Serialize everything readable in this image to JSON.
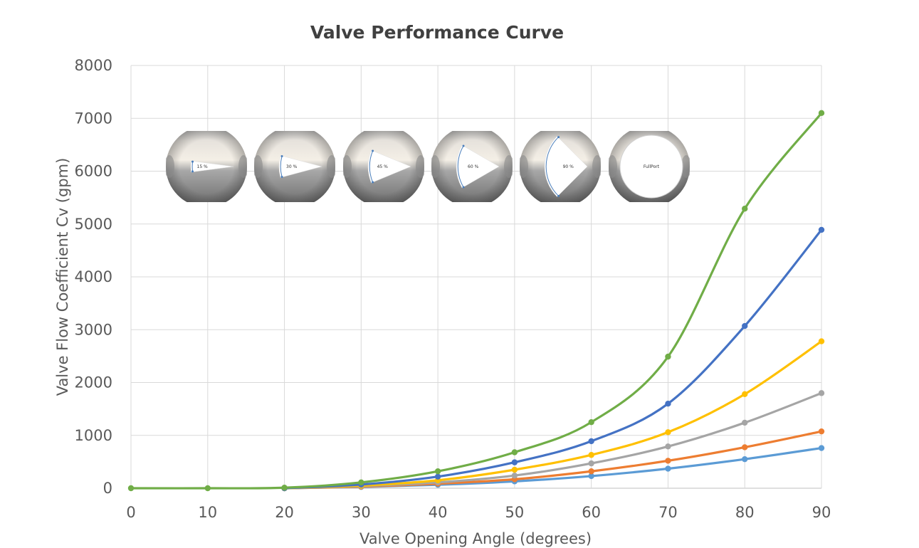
{
  "chart_data": {
    "type": "line",
    "title": "Valve Performance Curve",
    "xlabel": "Valve Opening Angle (degrees)",
    "ylabel": "Valve Flow Coefficient  Cv (gpm)",
    "xlim": [
      0,
      90
    ],
    "ylim": [
      0,
      8000
    ],
    "x_ticks": [
      "0",
      "10",
      "20",
      "30",
      "40",
      "50",
      "60",
      "70",
      "80",
      "90"
    ],
    "y_ticks": [
      "0",
      "1000",
      "2000",
      "3000",
      "4000",
      "5000",
      "6000",
      "7000",
      "8000"
    ],
    "grid": true,
    "smooth": true,
    "series": [
      {
        "color": "#5B9BD5",
        "points": [
          [
            20,
            0
          ],
          [
            30,
            25
          ],
          [
            40,
            65
          ],
          [
            50,
            130
          ],
          [
            60,
            230
          ],
          [
            70,
            370
          ],
          [
            80,
            550
          ],
          [
            90,
            760
          ]
        ]
      },
      {
        "color": "#ED7D31",
        "points": [
          [
            20,
            0
          ],
          [
            30,
            30
          ],
          [
            40,
            85
          ],
          [
            50,
            170
          ],
          [
            60,
            320
          ],
          [
            70,
            520
          ],
          [
            80,
            775
          ],
          [
            90,
            1075
          ]
        ]
      },
      {
        "color": "#A5A5A5",
        "points": [
          [
            20,
            0
          ],
          [
            30,
            40
          ],
          [
            40,
            110
          ],
          [
            50,
            240
          ],
          [
            60,
            470
          ],
          [
            70,
            790
          ],
          [
            80,
            1240
          ],
          [
            90,
            1800
          ]
        ]
      },
      {
        "color": "#FFC000",
        "points": [
          [
            20,
            0
          ],
          [
            30,
            50
          ],
          [
            40,
            150
          ],
          [
            50,
            350
          ],
          [
            60,
            630
          ],
          [
            70,
            1060
          ],
          [
            80,
            1780
          ],
          [
            90,
            2780
          ]
        ]
      },
      {
        "color": "#4472C4",
        "points": [
          [
            20,
            0
          ],
          [
            30,
            70
          ],
          [
            40,
            220
          ],
          [
            50,
            490
          ],
          [
            60,
            890
          ],
          [
            70,
            1600
          ],
          [
            80,
            3070
          ],
          [
            90,
            4890
          ]
        ]
      },
      {
        "color": "#70AD47",
        "points": [
          [
            0,
            0
          ],
          [
            10,
            0
          ],
          [
            20,
            10
          ],
          [
            30,
            110
          ],
          [
            40,
            320
          ],
          [
            50,
            680
          ],
          [
            60,
            1250
          ],
          [
            70,
            2490
          ],
          [
            80,
            5290
          ],
          [
            90,
            7100
          ]
        ]
      }
    ],
    "inset_images": [
      {
        "label": "15 %",
        "opening_deg": 15,
        "full_port": false
      },
      {
        "label": "30 %",
        "opening_deg": 30,
        "full_port": false
      },
      {
        "label": "45 %",
        "opening_deg": 45,
        "full_port": false
      },
      {
        "label": "60 %",
        "opening_deg": 60,
        "full_port": false
      },
      {
        "label": "90 %",
        "opening_deg": 90,
        "full_port": false
      },
      {
        "label": "FullPort",
        "opening_deg": 90,
        "full_port": true
      }
    ]
  }
}
